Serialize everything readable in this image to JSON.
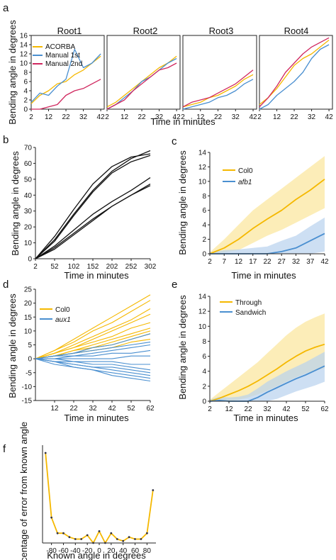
{
  "colors": {
    "yellow": "#f5b800",
    "blue": "#4a8fd0",
    "red": "#d0285f",
    "black": "#111111",
    "yellow_band": "#fbe69a",
    "blue_band": "#b8d1ee"
  },
  "panel_a": {
    "label": "a",
    "roots": [
      "Root1",
      "Root2",
      "Root3",
      "Root4"
    ],
    "ylabel": "Bending angle in degrees",
    "xlabel": "Time in minutes",
    "legend": [
      "ACORBA",
      "Manual 1st",
      "Manual 2nd"
    ],
    "xticks": [
      2,
      12,
      22,
      32,
      42
    ],
    "yticks": [
      0,
      2,
      4,
      6,
      8,
      10,
      12,
      14,
      16
    ],
    "ylim": [
      0,
      16
    ],
    "xlim": [
      2,
      44
    ]
  },
  "panel_b": {
    "label": "b",
    "ylabel": "Bending angle in degrees",
    "xlabel": "Time in minutes",
    "xticks": [
      2,
      52,
      102,
      152,
      202,
      252,
      302
    ],
    "yticks": [
      0,
      10,
      20,
      30,
      40,
      50,
      60,
      70
    ],
    "ylim": [
      0,
      70
    ],
    "xlim": [
      2,
      302
    ]
  },
  "panel_c": {
    "label": "c",
    "ylabel": "Bending angle in degrees",
    "xlabel": "Time in minutes",
    "legend": [
      "Col0",
      "afb1"
    ],
    "xticks": [
      2,
      7,
      12,
      17,
      22,
      27,
      32,
      37,
      42
    ],
    "yticks": [
      0,
      2,
      4,
      6,
      8,
      10,
      12,
      14
    ],
    "ylim": [
      0,
      14
    ],
    "xlim": [
      2,
      42
    ]
  },
  "panel_d": {
    "label": "d",
    "ylabel": "Bending angle in degrees",
    "xlabel": "Time in minutes",
    "legend": [
      "Col0",
      "aux1"
    ],
    "xticks": [
      12,
      22,
      32,
      42,
      52,
      62
    ],
    "yticks": [
      -15,
      -10,
      -5,
      0,
      5,
      10,
      15,
      20,
      25
    ],
    "ylim": [
      -15,
      25
    ],
    "xlim": [
      2,
      62
    ]
  },
  "panel_e": {
    "label": "e",
    "ylabel": "Bending angle in degrees",
    "xlabel": "Time in minutes",
    "legend": [
      "Through",
      "Sandwich"
    ],
    "xticks": [
      2,
      12,
      22,
      32,
      42,
      52,
      62
    ],
    "yticks": [
      0,
      2,
      4,
      6,
      8,
      10,
      12,
      14
    ],
    "ylim": [
      0,
      14
    ],
    "xlim": [
      2,
      62
    ]
  },
  "panel_f": {
    "label": "f",
    "ylabel": "Percentage of error from known angle",
    "xlabel": "Known angle in degrees",
    "xticks": [
      -80,
      -60,
      -40,
      -20,
      0,
      20,
      40,
      60,
      80
    ],
    "xlim": [
      -95,
      95
    ],
    "ylim": [
      0,
      5
    ]
  },
  "chart_data": [
    {
      "type": "line",
      "panel": "a",
      "x": [
        2,
        7,
        12,
        17,
        22,
        27,
        32,
        37,
        42
      ],
      "roots": [
        {
          "title": "Root1",
          "series": [
            {
              "name": "ACORBA",
              "values": [
                1.2,
                3.0,
                4.0,
                5.5,
                6.0,
                7.5,
                8.5,
                10.0,
                11.5
              ]
            },
            {
              "name": "Manual 1st",
              "values": [
                1.5,
                3.5,
                3.0,
                5.0,
                6.5,
                13.0,
                9.0,
                10.0,
                12.0
              ]
            },
            {
              "name": "Manual 2nd",
              "values": [
                0.0,
                0.0,
                0.5,
                1.0,
                3.0,
                4.0,
                4.5,
                5.5,
                6.5
              ]
            }
          ]
        },
        {
          "title": "Root2",
          "series": [
            {
              "name": "ACORBA",
              "values": [
                0.5,
                1.5,
                3.0,
                4.5,
                6.0,
                7.5,
                9.0,
                10.0,
                11.5
              ]
            },
            {
              "name": "Manual 1st",
              "values": [
                0.0,
                1.0,
                2.5,
                4.0,
                6.0,
                7.0,
                8.5,
                10.0,
                11.0
              ]
            },
            {
              "name": "Manual 2nd",
              "values": [
                0.0,
                1.0,
                2.0,
                4.0,
                5.5,
                7.0,
                8.5,
                9.0,
                10.0
              ]
            }
          ]
        },
        {
          "title": "Root3",
          "series": [
            {
              "name": "ACORBA",
              "values": [
                0.5,
                1.0,
                1.5,
                2.5,
                3.0,
                4.0,
                5.0,
                6.5,
                7.5
              ]
            },
            {
              "name": "Manual 1st",
              "values": [
                0.0,
                0.5,
                1.0,
                1.5,
                2.5,
                3.0,
                4.0,
                5.5,
                6.5
              ]
            },
            {
              "name": "Manual 2nd",
              "values": [
                0.5,
                1.5,
                2.0,
                2.5,
                3.5,
                4.5,
                5.5,
                7.0,
                8.5
              ]
            }
          ]
        },
        {
          "title": "Root4",
          "series": [
            {
              "name": "ACORBA",
              "values": [
                1.0,
                2.5,
                4.5,
                7.0,
                9.5,
                11.0,
                12.0,
                13.5,
                15.0
              ]
            },
            {
              "name": "Manual 1st",
              "values": [
                0.0,
                1.0,
                3.0,
                4.5,
                6.0,
                8.0,
                11.0,
                13.0,
                14.0
              ]
            },
            {
              "name": "Manual 2nd",
              "values": [
                0.5,
                2.5,
                5.0,
                8.0,
                10.0,
                12.0,
                13.5,
                14.5,
                15.5
              ]
            }
          ]
        }
      ]
    },
    {
      "type": "line",
      "panel": "b",
      "x": [
        2,
        52,
        102,
        152,
        202,
        252,
        302
      ],
      "series": [
        {
          "values": [
            0,
            12,
            28,
            43,
            55,
            63,
            68
          ]
        },
        {
          "values": [
            0,
            14,
            31,
            47,
            58,
            64,
            66
          ]
        },
        {
          "values": [
            0,
            11,
            27,
            42,
            54,
            61,
            65
          ]
        },
        {
          "values": [
            0,
            8,
            18,
            28,
            36,
            43,
            51
          ]
        },
        {
          "values": [
            0,
            7,
            16,
            25,
            33,
            40,
            47
          ]
        },
        {
          "values": [
            0,
            6,
            15,
            24,
            33,
            40,
            46
          ]
        }
      ]
    },
    {
      "type": "line",
      "panel": "c",
      "x": [
        2,
        7,
        12,
        17,
        22,
        27,
        32,
        37,
        42
      ],
      "series": [
        {
          "name": "Col0",
          "values": [
            0.0,
            0.8,
            2.0,
            3.5,
            4.8,
            6.0,
            7.5,
            8.8,
            10.3
          ],
          "lower": [
            0.0,
            0.2,
            0.5,
            1.5,
            2.5,
            3.3,
            4.3,
            5.3,
            6.3
          ],
          "upper": [
            0.2,
            2.0,
            4.0,
            6.0,
            7.5,
            9.0,
            10.5,
            12.0,
            13.5
          ]
        },
        {
          "name": "afb1",
          "values": [
            0.0,
            0.0,
            0.0,
            0.0,
            0.0,
            0.3,
            0.8,
            1.8,
            2.8
          ],
          "lower": [
            0.0,
            0.0,
            0.0,
            0.0,
            0.0,
            0.0,
            0.0,
            0.0,
            0.3
          ],
          "upper": [
            0.2,
            0.5,
            0.6,
            0.8,
            1.0,
            1.8,
            2.5,
            3.8,
            5.0
          ]
        }
      ]
    },
    {
      "type": "line",
      "panel": "d",
      "x": [
        2,
        12,
        22,
        32,
        42,
        52,
        62
      ],
      "series": [
        {
          "name": "Col0",
          "values": [
            0,
            3,
            7,
            11,
            15,
            19,
            23
          ]
        },
        {
          "name": "Col0",
          "values": [
            0,
            3,
            6,
            10,
            13,
            17,
            21
          ]
        },
        {
          "name": "Col0",
          "values": [
            0,
            2,
            5,
            8,
            11,
            14,
            18
          ]
        },
        {
          "name": "Col0",
          "values": [
            0,
            2,
            4,
            7,
            10,
            13,
            16
          ]
        },
        {
          "name": "Col0",
          "values": [
            0,
            2,
            4,
            6,
            8,
            11,
            13
          ]
        },
        {
          "name": "Col0",
          "values": [
            0,
            1,
            3,
            5,
            7,
            9,
            11
          ]
        },
        {
          "name": "Col0",
          "values": [
            0,
            1,
            3,
            4,
            6,
            8,
            10
          ]
        },
        {
          "name": "Col0",
          "values": [
            0,
            1,
            2,
            4,
            5,
            7,
            9
          ]
        },
        {
          "name": "Col0",
          "values": [
            0,
            1,
            2,
            3,
            4,
            6,
            7
          ]
        },
        {
          "name": "aux1",
          "values": [
            0,
            1,
            2,
            4,
            5,
            7,
            9
          ]
        },
        {
          "name": "aux1",
          "values": [
            0,
            1,
            2,
            3,
            4,
            5,
            6
          ]
        },
        {
          "name": "aux1",
          "values": [
            0,
            1,
            1,
            2,
            3,
            4,
            5
          ]
        },
        {
          "name": "aux1",
          "values": [
            0,
            0,
            1,
            1,
            2,
            2,
            3
          ]
        },
        {
          "name": "aux1",
          "values": [
            0,
            0,
            0,
            0,
            0,
            1,
            1
          ]
        },
        {
          "name": "aux1",
          "values": [
            0,
            0,
            -1,
            -1,
            -1,
            -2,
            -2
          ]
        },
        {
          "name": "aux1",
          "values": [
            0,
            -1,
            -1,
            -2,
            -2,
            -3,
            -4
          ]
        },
        {
          "name": "aux1",
          "values": [
            0,
            -1,
            -2,
            -3,
            -3,
            -4,
            -5
          ]
        },
        {
          "name": "aux1",
          "values": [
            0,
            -1,
            -2,
            -3,
            -4,
            -5,
            -6
          ]
        },
        {
          "name": "aux1",
          "values": [
            0,
            -1,
            -3,
            -4,
            -5,
            -6,
            -7
          ]
        },
        {
          "name": "aux1",
          "values": [
            0,
            -2,
            -3,
            -4,
            -6,
            -7,
            -8
          ]
        }
      ]
    },
    {
      "type": "line",
      "panel": "e",
      "x": [
        2,
        7,
        12,
        17,
        22,
        27,
        32,
        37,
        42,
        47,
        52,
        57,
        62
      ],
      "series": [
        {
          "name": "Through",
          "values": [
            0.0,
            0.4,
            0.9,
            1.4,
            2.0,
            2.7,
            3.5,
            4.3,
            5.2,
            6.0,
            6.7,
            7.2,
            7.6
          ],
          "lower": [
            0.0,
            0.0,
            0.0,
            0.2,
            0.5,
            0.9,
            1.4,
            2.0,
            2.6,
            3.2,
            3.7,
            4.1,
            4.4
          ],
          "upper": [
            0.2,
            1.2,
            2.2,
            3.2,
            4.2,
            5.2,
            6.4,
            7.6,
            8.8,
            9.8,
            10.6,
            11.2,
            11.7
          ]
        },
        {
          "name": "Sandwich",
          "values": [
            0.0,
            0.1,
            0.0,
            0.0,
            0.0,
            0.5,
            1.2,
            1.8,
            2.4,
            3.0,
            3.5,
            4.1,
            4.7
          ],
          "lower": [
            0.0,
            0.0,
            0.0,
            0.0,
            0.0,
            0.0,
            0.0,
            0.3,
            0.8,
            1.3,
            1.7,
            2.1,
            2.6
          ],
          "upper": [
            0.2,
            0.6,
            0.5,
            0.6,
            0.9,
            1.7,
            2.6,
            3.3,
            4.0,
            4.6,
            5.2,
            5.9,
            6.6
          ]
        }
      ]
    },
    {
      "type": "line",
      "panel": "f",
      "x": [
        -90,
        -80,
        -70,
        -60,
        -50,
        -40,
        -30,
        -20,
        -10,
        0,
        10,
        20,
        30,
        40,
        50,
        60,
        70,
        80,
        90
      ],
      "series": [
        {
          "values": [
            4.6,
            1.3,
            0.5,
            0.5,
            0.3,
            0.2,
            0.2,
            0.4,
            0.0,
            0.6,
            0.0,
            0.5,
            0.2,
            0.1,
            0.3,
            0.2,
            0.2,
            0.5,
            2.7
          ]
        }
      ]
    }
  ]
}
